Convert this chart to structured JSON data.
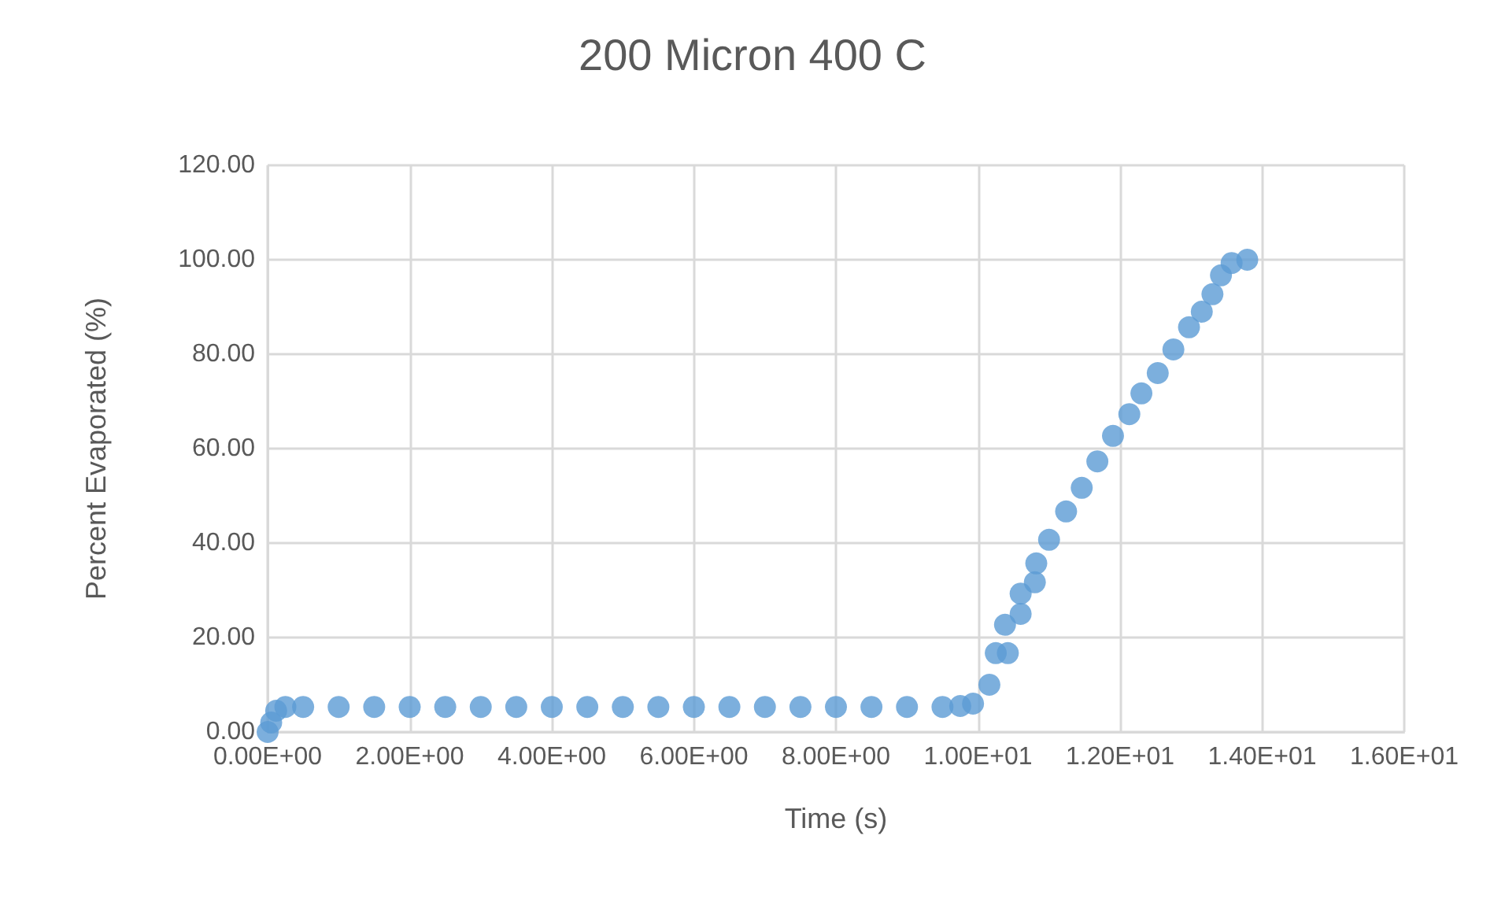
{
  "chart_data": {
    "type": "scatter",
    "title": "200 Micron 400 C",
    "xlabel": "Time (s)",
    "ylabel": "Percent Evaporated (%)",
    "series": [
      {
        "color": "#5b9bd5",
        "x": [
          0,
          0.05,
          0.12,
          0.25,
          0.5,
          1,
          1.5,
          2,
          2.5,
          3,
          3.5,
          4,
          4.5,
          5,
          5.5,
          6,
          6.5,
          7,
          7.5,
          8,
          8.5,
          9,
          9.5,
          9.75,
          9.93,
          10.16,
          10.25,
          10.42,
          10.38,
          10.6,
          10.6,
          10.8,
          10.82,
          11.0,
          11.24,
          11.46,
          11.68,
          11.9,
          12.13,
          12.3,
          12.53,
          12.75,
          12.97,
          13.15,
          13.3,
          13.42,
          13.57,
          13.79
        ],
        "values": [
          0,
          2,
          4.5,
          5.3,
          5.3,
          5.3,
          5.3,
          5.3,
          5.3,
          5.3,
          5.3,
          5.3,
          5.3,
          5.3,
          5.3,
          5.3,
          5.3,
          5.3,
          5.3,
          5.3,
          5.3,
          5.3,
          5.3,
          5.5,
          6,
          10,
          16.7,
          16.7,
          22.7,
          25,
          29.3,
          31.7,
          35.7,
          40.7,
          46.7,
          51.7,
          57.3,
          62.7,
          67.3,
          71.7,
          76,
          81,
          85.7,
          89,
          92.7,
          96.7,
          99.3,
          100
        ]
      }
    ],
    "xlim": [
      0,
      16
    ],
    "xticks": [
      {
        "value": 0,
        "label": "0.00E+00"
      },
      {
        "value": 2,
        "label": "2.00E+00"
      },
      {
        "value": 4,
        "label": "4.00E+00"
      },
      {
        "value": 6,
        "label": "6.00E+00"
      },
      {
        "value": 8,
        "label": "8.00E+00"
      },
      {
        "value": 10,
        "label": "1.00E+01"
      },
      {
        "value": 12,
        "label": "1.20E+01"
      },
      {
        "value": 14,
        "label": "1.40E+01"
      },
      {
        "value": 16,
        "label": "1.60E+01"
      }
    ],
    "ylim": [
      0,
      120
    ],
    "yticks": [
      {
        "value": 0,
        "label": "0.00"
      },
      {
        "value": 20,
        "label": "20.00"
      },
      {
        "value": 40,
        "label": "40.00"
      },
      {
        "value": 60,
        "label": "60.00"
      },
      {
        "value": 80,
        "label": "80.00"
      },
      {
        "value": 100,
        "label": "100.00"
      },
      {
        "value": 120,
        "label": "120.00"
      }
    ],
    "grid": true,
    "marker": "circle"
  }
}
